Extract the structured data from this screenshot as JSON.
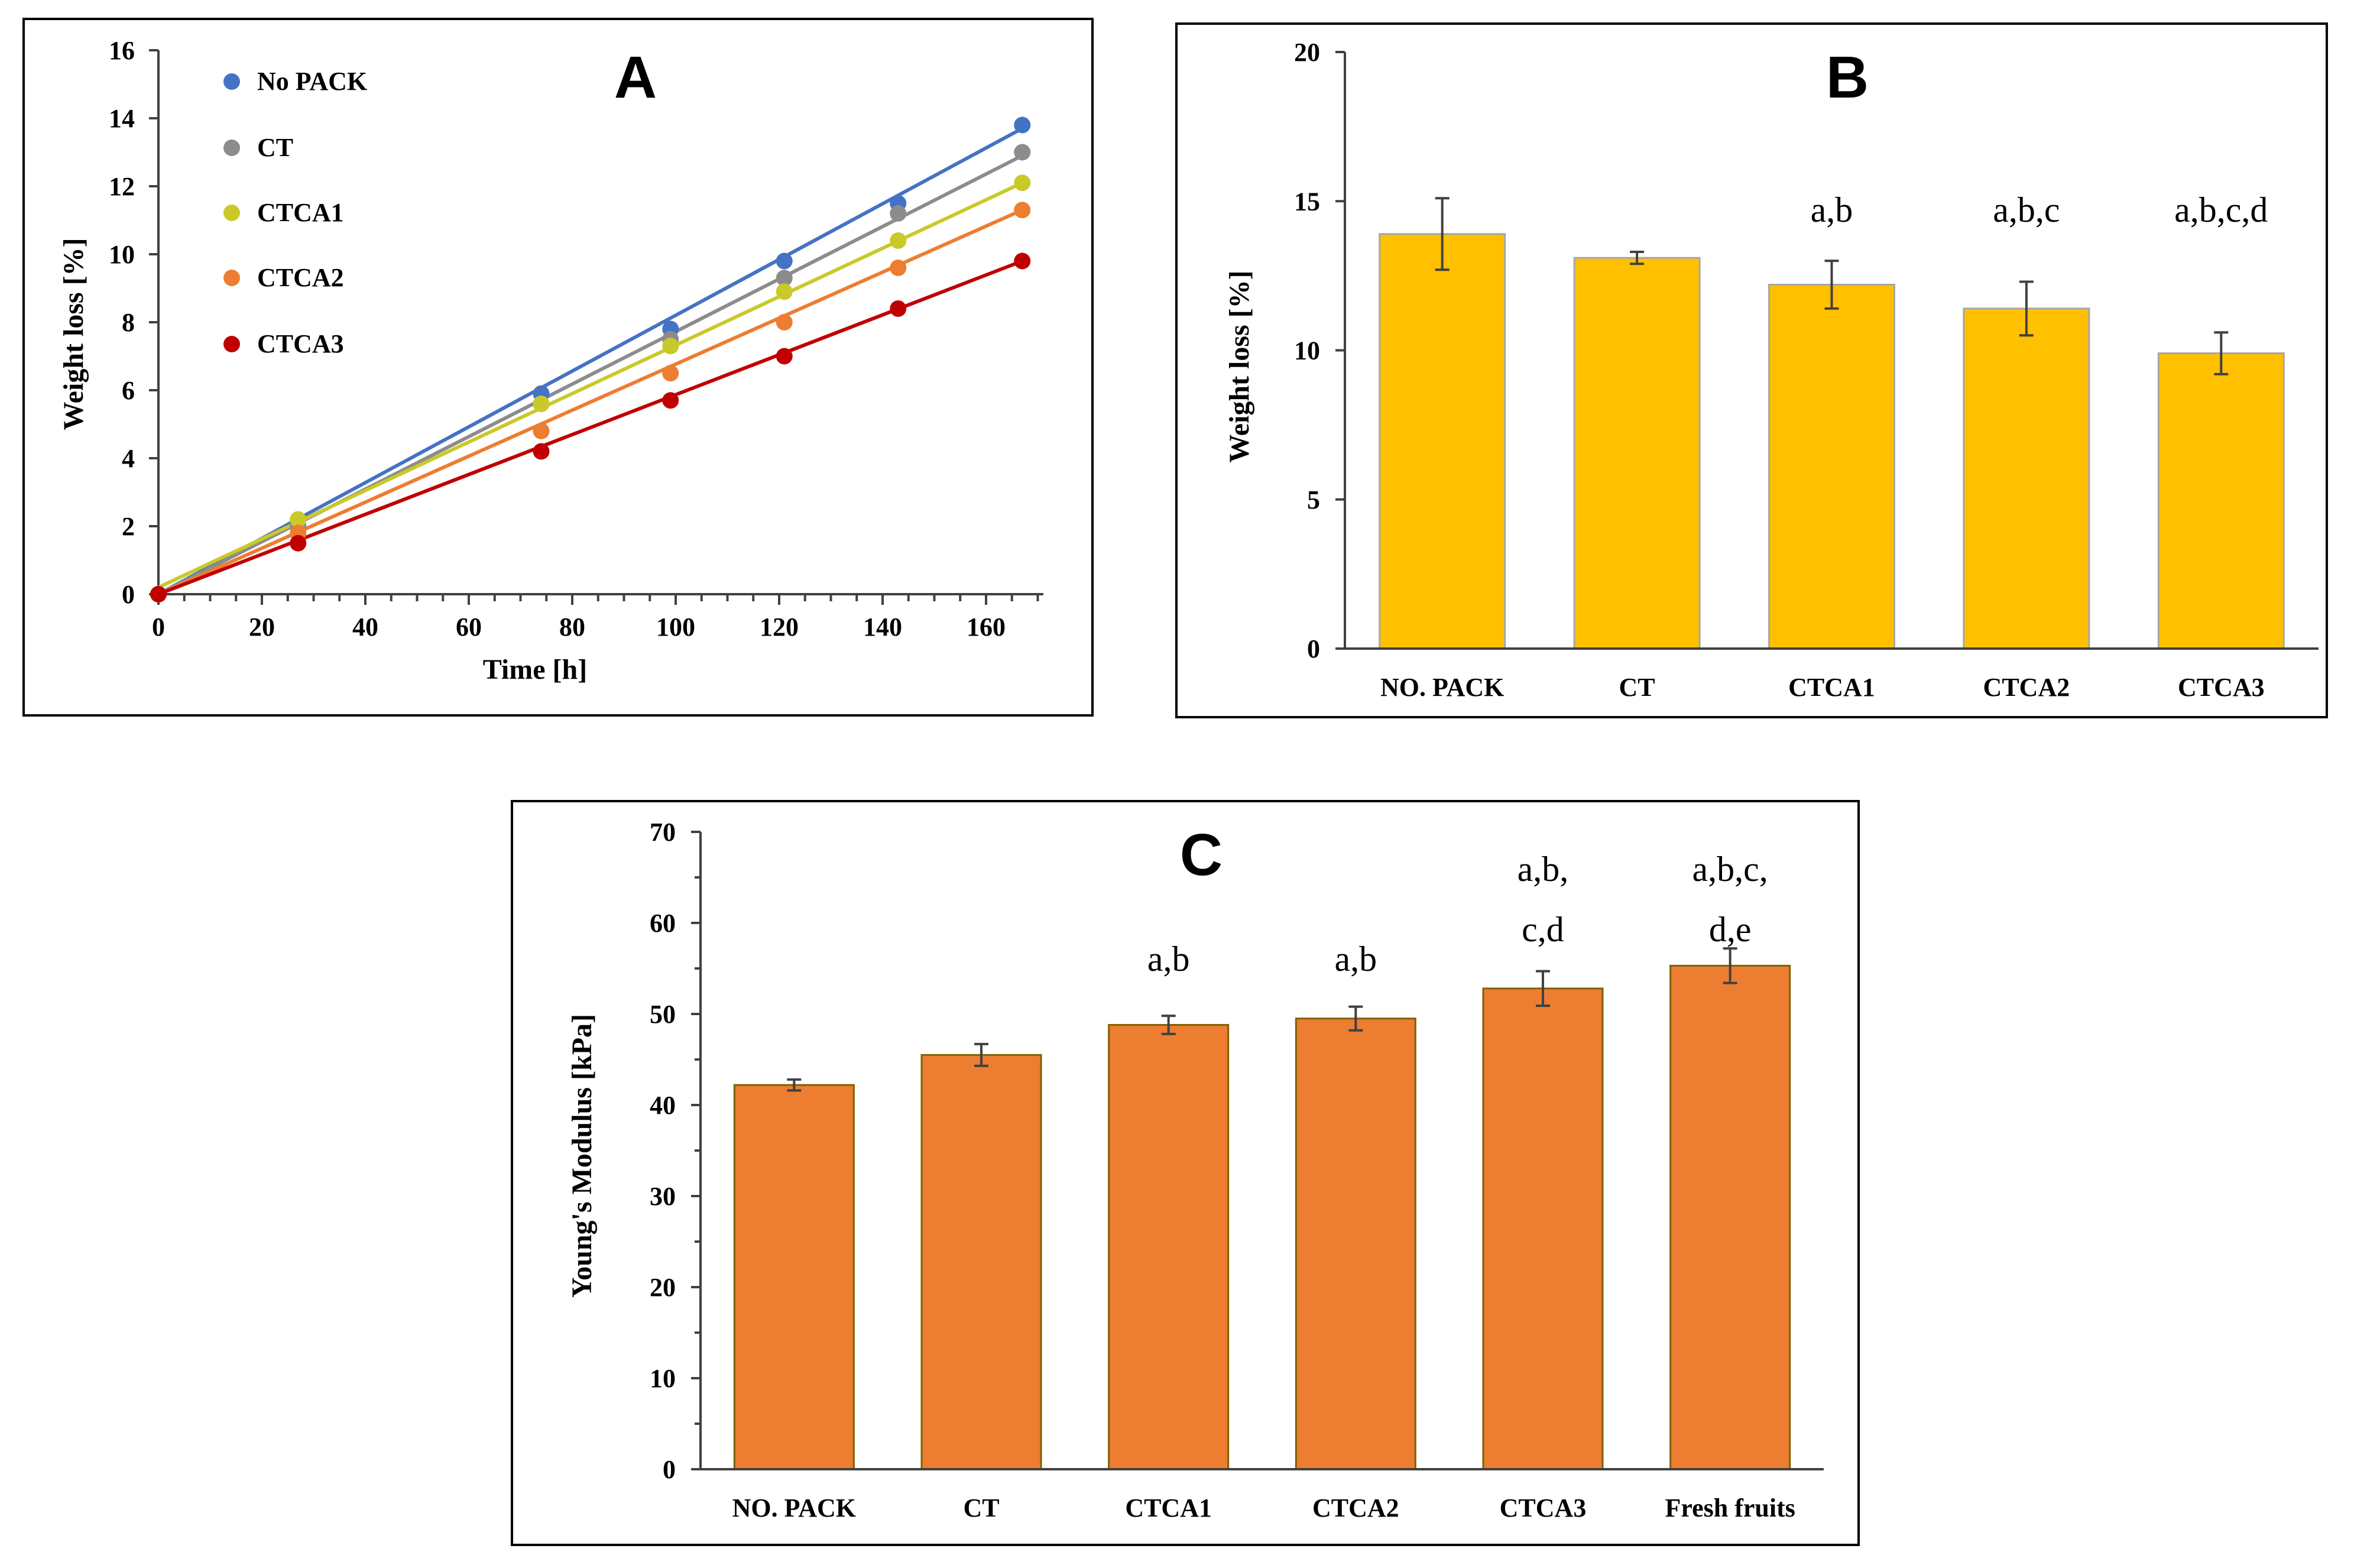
{
  "chart_data": [
    {
      "panel": "A",
      "type": "scatter",
      "title": "A",
      "xlabel": "Time [h]",
      "ylabel": "Weight loss  [%]",
      "xlim": [
        0,
        170
      ],
      "ylim": [
        0,
        16
      ],
      "xticks": [
        0,
        20,
        40,
        60,
        80,
        100,
        120,
        140,
        160
      ],
      "yticks": [
        0,
        2,
        4,
        6,
        8,
        10,
        12,
        14,
        16
      ],
      "x": [
        0,
        27,
        74,
        99,
        121,
        143,
        167
      ],
      "series": [
        {
          "name": "No PACK",
          "color": "#4472C4",
          "values": [
            0,
            2.0,
            5.9,
            7.8,
            9.8,
            11.5,
            13.8
          ]
        },
        {
          "name": "CT",
          "color": "#8C8C8C",
          "values": [
            0,
            2.0,
            5.6,
            7.5,
            9.3,
            11.2,
            13.0
          ]
        },
        {
          "name": "CTCA1",
          "color": "#C9C92A",
          "values": [
            0,
            2.2,
            5.6,
            7.3,
            8.9,
            10.4,
            12.1
          ]
        },
        {
          "name": "CTCA2",
          "color": "#ED7D31",
          "values": [
            0,
            1.8,
            4.8,
            6.5,
            8.0,
            9.6,
            11.3
          ]
        },
        {
          "name": "CTCA3",
          "color": "#C00000",
          "values": [
            0,
            1.5,
            4.2,
            5.7,
            7.0,
            8.4,
            9.8
          ]
        }
      ],
      "trendlines": [
        {
          "series": "No PACK",
          "start": 0.0,
          "end": 13.7
        },
        {
          "series": "CT",
          "start": 0.0,
          "end": 12.9
        },
        {
          "series": "CTCA1",
          "start": 0.2,
          "end": 12.1
        },
        {
          "series": "CTCA2",
          "start": 0.0,
          "end": 11.3
        },
        {
          "series": "CTCA3",
          "start": 0.0,
          "end": 9.8
        }
      ]
    },
    {
      "panel": "B",
      "type": "bar",
      "title": "B",
      "xlabel": "",
      "ylabel": "Weight loss [%]",
      "ylim": [
        0,
        20
      ],
      "yticks": [
        0,
        5,
        10,
        15,
        20
      ],
      "categories": [
        "NO. PACK",
        "CT",
        "CTCA1",
        "CTCA2",
        "CTCA3"
      ],
      "values": [
        13.9,
        13.1,
        12.2,
        11.4,
        9.9
      ],
      "errors": [
        1.2,
        0.2,
        0.8,
        0.9,
        0.7
      ],
      "annotations": [
        "",
        "",
        "a,b",
        "a,b,c",
        "a,b,c,d"
      ],
      "bar_color": "#FFC000",
      "edge_color": "#A6A6A6"
    },
    {
      "panel": "C",
      "type": "bar",
      "title": "C",
      "xlabel": "",
      "ylabel": "Young's Modulus  [kPa]",
      "ylim": [
        0,
        70
      ],
      "yticks": [
        0,
        10,
        20,
        30,
        40,
        50,
        60,
        70
      ],
      "categories": [
        "NO. PACK",
        "CT",
        "CTCA1",
        "CTCA2",
        "CTCA3",
        "Fresh fruits"
      ],
      "values": [
        42.2,
        45.5,
        48.8,
        49.5,
        52.8,
        55.3
      ],
      "errors": [
        0.6,
        1.2,
        1.0,
        1.3,
        1.9,
        1.9
      ],
      "annotations": [
        [],
        [],
        [
          "a,b"
        ],
        [
          "a,b"
        ],
        [
          "a,b,",
          "c,d"
        ],
        [
          "a,b,c,",
          "d,e"
        ]
      ],
      "bar_color": "#ED7D31",
      "edge_color": "#7F6000"
    }
  ]
}
